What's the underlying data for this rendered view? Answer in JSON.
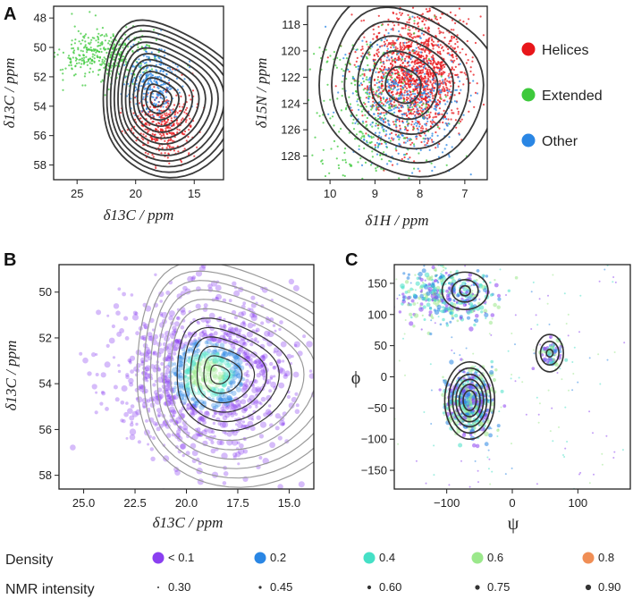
{
  "panels": {
    "A": "A",
    "B": "B",
    "C": "C"
  },
  "legend_top": [
    {
      "label": "Helices",
      "color": "#e8161a"
    },
    {
      "label": "Extended",
      "color": "#3ec93c"
    },
    {
      "label": "Other",
      "color": "#2a86e4"
    }
  ],
  "legend_bottom": {
    "density_title": "Density",
    "density": [
      {
        "label": "< 0.1",
        "color": "#8a3ff0"
      },
      {
        "label": "0.2",
        "color": "#2a86e4"
      },
      {
        "label": "0.4",
        "color": "#45e0c6"
      },
      {
        "label": "0.6",
        "color": "#9be88b"
      },
      {
        "label": "0.8",
        "color": "#f08e55"
      }
    ],
    "intensity_title": "NMR intensity",
    "intensity": [
      {
        "label": "0.30",
        "r": 1.0
      },
      {
        "label": "0.45",
        "r": 1.6
      },
      {
        "label": "0.60",
        "r": 2.1
      },
      {
        "label": "0.75",
        "r": 2.6
      },
      {
        "label": "0.90",
        "r": 3.1
      }
    ]
  },
  "chart_data": [
    {
      "id": "A-left",
      "type": "scatter",
      "xlabel": "δ13C / ppm",
      "ylabel": "δ13C / ppm",
      "xlim": [
        27,
        12.5
      ],
      "ylim": [
        59,
        47.2
      ],
      "xticks": [
        25,
        20,
        15
      ],
      "yticks": [
        48,
        50,
        52,
        54,
        56,
        58
      ],
      "series": [
        {
          "name": "Helices",
          "color": "#e8161a",
          "center": [
            17.6,
            55.2
          ],
          "spread": [
            1.3,
            1.2
          ],
          "n": 380
        },
        {
          "name": "Extended",
          "color": "#3ec93c",
          "center": [
            22.5,
            50.6
          ],
          "spread": [
            2.0,
            0.9
          ],
          "n": 380
        },
        {
          "name": "Other",
          "color": "#2a86e4",
          "center": [
            18.6,
            52.3
          ],
          "spread": [
            1.2,
            1.2
          ],
          "n": 300
        }
      ],
      "contours": {
        "center": [
          18.3,
          53.5
        ],
        "levels": 13,
        "color": "#3a3a3a"
      }
    },
    {
      "id": "A-right",
      "type": "scatter",
      "xlabel": "δ1H / ppm",
      "ylabel": "δ15N / ppm",
      "xlim": [
        10.5,
        6.5
      ],
      "ylim": [
        129.8,
        116.6
      ],
      "xticks": [
        10,
        9,
        8,
        7
      ],
      "yticks": [
        118,
        120,
        122,
        124,
        126,
        128
      ],
      "series": [
        {
          "name": "Helices",
          "color": "#e8161a",
          "center": [
            8.1,
            121.8
          ],
          "spread": [
            0.55,
            2.2
          ],
          "n": 1500
        },
        {
          "name": "Extended",
          "color": "#3ec93c",
          "center": [
            9.1,
            124.5
          ],
          "spread": [
            0.7,
            3.0
          ],
          "n": 380
        },
        {
          "name": "Other",
          "color": "#2a86e4",
          "center": [
            8.3,
            124.0
          ],
          "spread": [
            0.6,
            2.4
          ],
          "n": 500
        }
      ],
      "contours": {
        "center": [
          8.4,
          122.6
        ],
        "levels": 6,
        "color": "#3a3a3a"
      }
    },
    {
      "id": "B",
      "type": "scatter",
      "xlabel": "δ13C / ppm",
      "ylabel": "δ13C / ppm",
      "xlim": [
        26.2,
        13.8
      ],
      "ylim": [
        58.6,
        48.8
      ],
      "xticks": [
        25.0,
        22.5,
        20.0,
        17.5,
        15.0
      ],
      "yticks": [
        50,
        52,
        54,
        56,
        58
      ],
      "color_encodes": "Density",
      "size_encodes": "NMR intensity",
      "center": [
        19.0,
        53.6
      ],
      "spread": [
        2.1,
        1.7
      ],
      "n": 1100,
      "contours": {
        "center": [
          18.5,
          53.6
        ],
        "levels": 12,
        "color_inner": "#333333",
        "color_outer": "#9a9a9a"
      }
    },
    {
      "id": "C",
      "type": "scatter",
      "xlabel": "ψ",
      "ylabel": "ϕ",
      "xlim": [
        -180,
        180
      ],
      "ylim": [
        -180,
        180
      ],
      "xticks": [
        -100,
        0,
        100
      ],
      "yticks": [
        150,
        100,
        50,
        0,
        -50,
        -100,
        -150
      ],
      "clusters": [
        {
          "center": [
            -65,
            -40
          ],
          "spread": [
            18,
            25
          ],
          "n": 500
        },
        {
          "center": [
            -100,
            135
          ],
          "spread": [
            35,
            25
          ],
          "n": 380
        },
        {
          "center": [
            60,
            38
          ],
          "spread": [
            9,
            14
          ],
          "n": 70
        }
      ],
      "contours": [
        {
          "center": [
            -65,
            -38
          ],
          "rx": [
            10,
            16,
            21,
            26,
            32,
            38
          ],
          "ry": [
            16,
            26,
            34,
            42,
            52,
            62
          ]
        },
        {
          "center": [
            -72,
            138
          ],
          "rx": [
            8,
            20,
            35
          ],
          "ry": [
            8,
            18,
            30
          ]
        },
        {
          "center": [
            57,
            38
          ],
          "rx": [
            5,
            14,
            21
          ],
          "ry": [
            6,
            19,
            30
          ]
        }
      ]
    }
  ]
}
